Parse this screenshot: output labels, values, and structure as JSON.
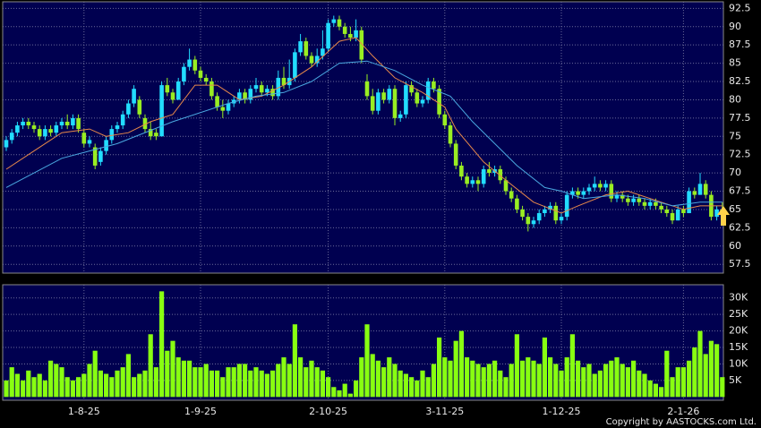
{
  "chart_data": [
    {
      "type": "candlestick",
      "up_color": "#22ddff",
      "down_color": "#99ee22",
      "categories": [
        null,
        null,
        null,
        null,
        null,
        null,
        null,
        null,
        null,
        null,
        null,
        null,
        null,
        null,
        "1-8-25",
        null,
        null,
        null,
        null,
        null,
        null,
        null,
        null,
        null,
        null,
        null,
        null,
        null,
        null,
        null,
        null,
        null,
        null,
        null,
        null,
        "1-9-25",
        null,
        null,
        null,
        null,
        null,
        null,
        null,
        null,
        null,
        null,
        null,
        null,
        null,
        null,
        null,
        null,
        null,
        null,
        null,
        null,
        null,
        null,
        "2-10-25",
        null,
        null,
        null,
        null,
        null,
        null,
        null,
        null,
        null,
        null,
        null,
        null,
        null,
        null,
        null,
        null,
        null,
        null,
        null,
        null,
        "3-11-25",
        null,
        null,
        null,
        null,
        null,
        null,
        null,
        null,
        null,
        null,
        null,
        null,
        null,
        null,
        null,
        null,
        null,
        null,
        null,
        null,
        "1-12-25",
        null,
        null,
        null,
        null,
        null,
        null,
        null,
        null,
        null,
        null,
        null,
        null,
        null,
        null,
        null,
        null,
        null,
        null,
        null,
        null,
        null,
        "2-1-26",
        null,
        null,
        null,
        null,
        null,
        null,
        null
      ],
      "ohlc": [
        [
          73.5,
          75,
          73,
          74.5
        ],
        [
          74.5,
          76,
          74,
          75.5
        ],
        [
          75.5,
          77,
          75,
          76.5
        ],
        [
          76.5,
          77.5,
          76,
          77
        ],
        [
          77,
          77.5,
          76,
          76.5
        ],
        [
          76.5,
          77,
          75.5,
          76
        ],
        [
          76,
          76.5,
          74.5,
          75
        ],
        [
          75,
          76.5,
          74.5,
          76
        ],
        [
          76,
          76.5,
          75,
          75.5
        ],
        [
          75.5,
          77,
          75,
          76.5
        ],
        [
          76.5,
          77.5,
          76,
          77
        ],
        [
          77,
          78,
          76,
          76.5
        ],
        [
          76.5,
          78,
          76,
          77.5
        ],
        [
          77.5,
          78,
          75.5,
          76
        ],
        [
          75.5,
          76,
          73.5,
          74
        ],
        [
          74,
          75,
          73.5,
          74.5
        ],
        [
          73.5,
          74,
          70.5,
          71
        ],
        [
          71.5,
          73.5,
          71,
          73
        ],
        [
          73,
          75,
          72.5,
          74.5
        ],
        [
          74.5,
          76.5,
          74,
          76
        ],
        [
          76,
          77,
          75.5,
          76.5
        ],
        [
          76.5,
          78.5,
          76,
          78
        ],
        [
          78,
          80,
          77.5,
          79.5
        ],
        [
          79.5,
          82,
          79,
          81.5
        ],
        [
          80,
          80.5,
          77.5,
          78
        ],
        [
          77.5,
          78,
          75.5,
          76
        ],
        [
          76,
          77,
          74.5,
          75
        ],
        [
          75.5,
          76,
          74.5,
          75
        ],
        [
          75,
          82.5,
          75,
          82
        ],
        [
          82,
          83,
          80.5,
          81
        ],
        [
          81,
          81.5,
          79.5,
          80
        ],
        [
          80,
          83,
          80,
          82.5
        ],
        [
          82.5,
          85,
          82,
          84.5
        ],
        [
          84.5,
          87,
          84,
          85.5
        ],
        [
          85.5,
          86,
          83.5,
          84
        ],
        [
          84,
          84.5,
          82.5,
          83
        ],
        [
          83,
          83.5,
          82,
          82.5
        ],
        [
          82.5,
          83,
          80,
          80.5
        ],
        [
          80.5,
          81,
          78.5,
          79
        ],
        [
          79,
          80,
          77.5,
          78.5
        ],
        [
          78.5,
          80,
          78,
          79.5
        ],
        [
          79.5,
          80.5,
          79,
          80
        ],
        [
          80,
          81.5,
          79.5,
          81
        ],
        [
          81,
          81.5,
          79.5,
          80
        ],
        [
          80,
          82,
          79.5,
          81.5
        ],
        [
          81.5,
          83,
          81,
          82
        ],
        [
          82,
          82.5,
          80.5,
          81
        ],
        [
          81,
          82,
          80.5,
          81.5
        ],
        [
          81.5,
          82,
          80,
          80.5
        ],
        [
          80.5,
          84,
          80,
          83
        ],
        [
          83,
          84.5,
          81.5,
          82
        ],
        [
          82,
          85.5,
          81.5,
          83
        ],
        [
          83,
          87,
          82.5,
          86.5
        ],
        [
          86.5,
          89,
          86,
          88
        ],
        [
          88,
          88.5,
          85.5,
          86
        ],
        [
          86,
          86.5,
          84.5,
          85
        ],
        [
          85,
          87,
          84.5,
          86
        ],
        [
          86,
          89.5,
          85.5,
          87
        ],
        [
          87,
          91,
          86.5,
          90.5
        ],
        [
          90.5,
          91.5,
          90,
          91
        ],
        [
          91,
          91.5,
          89.5,
          90
        ],
        [
          90,
          90.5,
          88.5,
          89
        ],
        [
          89,
          90,
          88,
          88.5
        ],
        [
          88.5,
          91,
          88,
          89.5
        ],
        [
          89.5,
          90,
          85,
          85.5
        ],
        [
          82.5,
          83.5,
          80,
          80.5
        ],
        [
          80.5,
          81.5,
          78,
          78.5
        ],
        [
          78.5,
          81.5,
          78,
          81
        ],
        [
          81,
          81.5,
          79.5,
          80
        ],
        [
          80,
          82,
          79.5,
          81.5
        ],
        [
          81.5,
          82,
          76.5,
          77.5
        ],
        [
          77.5,
          78.5,
          77,
          78
        ],
        [
          78,
          82.5,
          77.5,
          82
        ],
        [
          82,
          82.5,
          80.5,
          81
        ],
        [
          81,
          81.5,
          79,
          79.5
        ],
        [
          79.5,
          80.5,
          79,
          80
        ],
        [
          80,
          83,
          79.5,
          82.5
        ],
        [
          82.5,
          83,
          81,
          81.5
        ],
        [
          81.5,
          82,
          77.5,
          78
        ],
        [
          78,
          78.5,
          76,
          76.5
        ],
        [
          76.5,
          77,
          73.5,
          74
        ],
        [
          74,
          74.5,
          70.5,
          71
        ],
        [
          71,
          71.5,
          69,
          69.5
        ],
        [
          69.5,
          70,
          68,
          68.5
        ],
        [
          68.5,
          69.5,
          68,
          69
        ],
        [
          69,
          69.5,
          67.5,
          68.5
        ],
        [
          68.5,
          71,
          68,
          70.5
        ],
        [
          70.5,
          71.5,
          69.5,
          70
        ],
        [
          70,
          71,
          69.5,
          70.5
        ],
        [
          70.5,
          71,
          68.5,
          69
        ],
        [
          69,
          69.5,
          67,
          67.5
        ],
        [
          67.5,
          68,
          66,
          66.5
        ],
        [
          66.5,
          67,
          64.5,
          65
        ],
        [
          65,
          65.5,
          63.5,
          64
        ],
        [
          64,
          64.5,
          62,
          63
        ],
        [
          63,
          64,
          62.5,
          63.5
        ],
        [
          63.5,
          65,
          63,
          64.5
        ],
        [
          64.5,
          65.5,
          64,
          65
        ],
        [
          65,
          66,
          64.5,
          65.5
        ],
        [
          65.5,
          66,
          63,
          63.5
        ],
        [
          63.5,
          64.5,
          63,
          64
        ],
        [
          64,
          67.5,
          63.5,
          67
        ],
        [
          67,
          68,
          66.5,
          67.5
        ],
        [
          67.5,
          68,
          66.5,
          67
        ],
        [
          67,
          68,
          66.5,
          67.5
        ],
        [
          67.5,
          68.5,
          67,
          68
        ],
        [
          68,
          69.5,
          67.5,
          68.5
        ],
        [
          68.5,
          69,
          67.5,
          68
        ],
        [
          68,
          69,
          67.5,
          68.5
        ],
        [
          68.5,
          69,
          66,
          66.5
        ],
        [
          66.5,
          67.5,
          66,
          67
        ],
        [
          67,
          67.5,
          66,
          66.5
        ],
        [
          66.5,
          67,
          65.5,
          66
        ],
        [
          66,
          67,
          65.5,
          66.5
        ],
        [
          66.5,
          67,
          65.5,
          66
        ],
        [
          66,
          66.5,
          65,
          65.5
        ],
        [
          65.5,
          66.5,
          65,
          66
        ],
        [
          66,
          66.5,
          65,
          65.5
        ],
        [
          65.5,
          66,
          64.5,
          65
        ],
        [
          65,
          65.5,
          64,
          64.5
        ],
        [
          64.5,
          65,
          63,
          63.5
        ],
        [
          63.5,
          65.5,
          63.5,
          65
        ],
        [
          65,
          65.5,
          64,
          64.5
        ],
        [
          64.5,
          68,
          64.5,
          67.5
        ],
        [
          67.5,
          68,
          66.5,
          67
        ],
        [
          67,
          70,
          67,
          68.5
        ],
        [
          68.5,
          69,
          66.5,
          67
        ],
        [
          67,
          67.5,
          63.5,
          64
        ],
        [
          64,
          65.5,
          63.5,
          65
        ],
        [
          65,
          66,
          64,
          64.5
        ]
      ],
      "series": [
        {
          "color": "#e8894a",
          "x": [
            0,
            5,
            10,
            15,
            18,
            22,
            26,
            30,
            34,
            38,
            42,
            46,
            50,
            55,
            60,
            63,
            66,
            70,
            75,
            79,
            81,
            86,
            90,
            95,
            100,
            103,
            108,
            112,
            118,
            122,
            125,
            129
          ],
          "values": [
            70.5,
            73,
            75.5,
            76,
            75,
            75.5,
            77,
            78,
            82,
            82,
            80,
            80.5,
            82,
            84.5,
            88,
            88.5,
            86,
            83,
            81,
            79,
            76,
            71.5,
            69,
            66,
            64.5,
            65.5,
            67,
            67.5,
            66,
            65,
            65.5,
            65.5
          ]
        },
        {
          "color": "#4aa8e0",
          "x": [
            0,
            10,
            20,
            30,
            40,
            45,
            50,
            55,
            60,
            65,
            70,
            75,
            80,
            84,
            88,
            92,
            97,
            100,
            104,
            110,
            115,
            120,
            125,
            129
          ],
          "values": [
            68,
            72,
            74,
            77,
            79.5,
            80.5,
            81,
            82.5,
            85,
            85.3,
            84,
            82,
            80.5,
            77,
            74,
            71,
            68,
            67.5,
            66.5,
            67,
            66.5,
            65.5,
            66,
            66
          ]
        }
      ],
      "ylim": [
        56.3,
        93.4
      ],
      "yticks": [
        57.5,
        60,
        62.5,
        65,
        67.5,
        70,
        72.5,
        75,
        77.5,
        80,
        82.5,
        85,
        87.5,
        90,
        92.5
      ],
      "grid": true
    },
    {
      "type": "bar",
      "color": "#88ff11",
      "values": [
        5000,
        9000,
        7000,
        5000,
        8000,
        6000,
        7000,
        5000,
        11000,
        10000,
        9000,
        6000,
        5000,
        6000,
        7000,
        10000,
        14000,
        8000,
        7000,
        6000,
        8000,
        9000,
        13000,
        6000,
        7000,
        8000,
        19000,
        9000,
        32000,
        14000,
        17000,
        12000,
        11000,
        11000,
        9000,
        9000,
        10000,
        8000,
        8000,
        6000,
        9000,
        9000,
        10000,
        10000,
        8000,
        9000,
        8000,
        7000,
        8000,
        10000,
        12000,
        10000,
        22000,
        12000,
        9000,
        11000,
        9000,
        8000,
        6000,
        3000,
        2000,
        4000,
        1000,
        5000,
        12000,
        22000,
        13000,
        11000,
        9000,
        12000,
        10000,
        8000,
        7000,
        6000,
        5000,
        8000,
        6000,
        10000,
        18000,
        12000,
        11000,
        17000,
        20000,
        12000,
        11000,
        10000,
        9000,
        10000,
        11000,
        8000,
        6000,
        10000,
        19000,
        11000,
        12000,
        11000,
        10000,
        18000,
        12000,
        10000,
        8000,
        12000,
        19000,
        11000,
        9000,
        10000,
        7000,
        8000,
        10000,
        11000,
        12000,
        10000,
        9000,
        11000,
        8000,
        7000,
        5000,
        4000,
        3000,
        14000,
        6000,
        9000,
        9000,
        11000,
        15000,
        20000,
        13000,
        17000,
        16000,
        6000
      ],
      "ylim": [
        -1000,
        34000
      ],
      "yticks": [
        {
          "value": 5000,
          "label": "5K"
        },
        {
          "value": 10000,
          "label": "10K"
        },
        {
          "value": 15000,
          "label": "15K"
        },
        {
          "value": 20000,
          "label": "20K"
        },
        {
          "value": 25000,
          "label": "25K"
        },
        {
          "value": 30000,
          "label": "30K"
        }
      ],
      "grid": true
    }
  ],
  "copyright": "Copyright by AASTOCKS.com Ltd."
}
